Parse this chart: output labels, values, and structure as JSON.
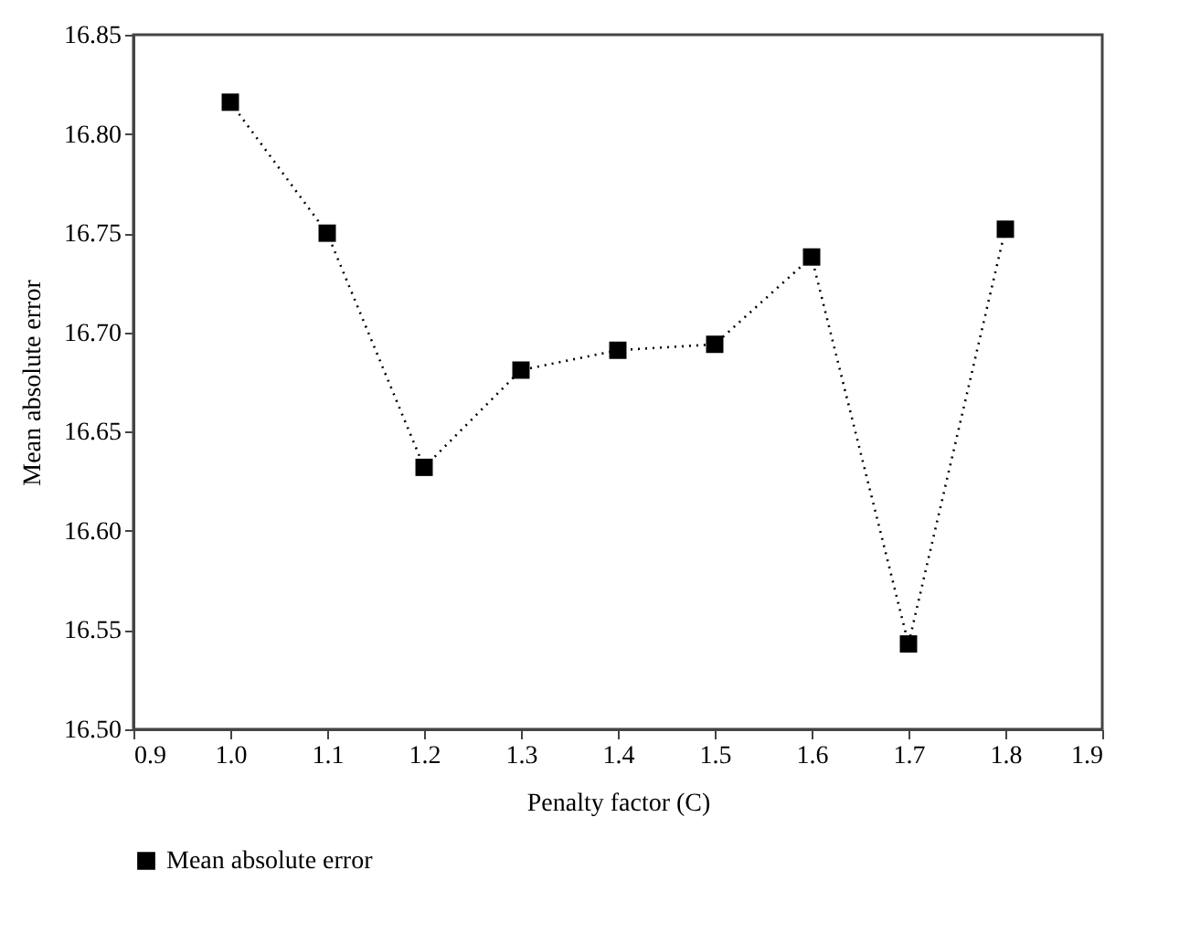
{
  "chart_data": {
    "type": "line",
    "xlabel": "Penalty factor (C)",
    "ylabel": "Mean absolute error",
    "x": [
      1.0,
      1.1,
      1.2,
      1.3,
      1.4,
      1.5,
      1.6,
      1.7,
      1.8
    ],
    "series": [
      {
        "name": "Mean absolute error",
        "color": "#000000",
        "values": [
          16.816,
          16.75,
          16.632,
          16.681,
          16.691,
          16.694,
          16.738,
          16.543,
          16.752
        ]
      }
    ],
    "xlim": [
      0.9,
      1.9
    ],
    "xticks": [
      0.9,
      {
        "value": 1,
        "label": "1.0"
      },
      1.1,
      1.2,
      1.3,
      1.4,
      1.5,
      1.6,
      1.7,
      1.8,
      1.9
    ],
    "ylim": [
      16.5,
      16.85
    ],
    "yticks": [
      {
        "value": 16.5,
        "label": "16.50"
      },
      16.55,
      {
        "value": 16.6,
        "label": "16.60"
      },
      16.65,
      {
        "value": 16.7,
        "label": "16.70"
      },
      16.75,
      {
        "value": 16.8,
        "label": "16.80"
      },
      16.85
    ],
    "marker": "square",
    "line_style": "dotted",
    "legend": "bottom"
  }
}
